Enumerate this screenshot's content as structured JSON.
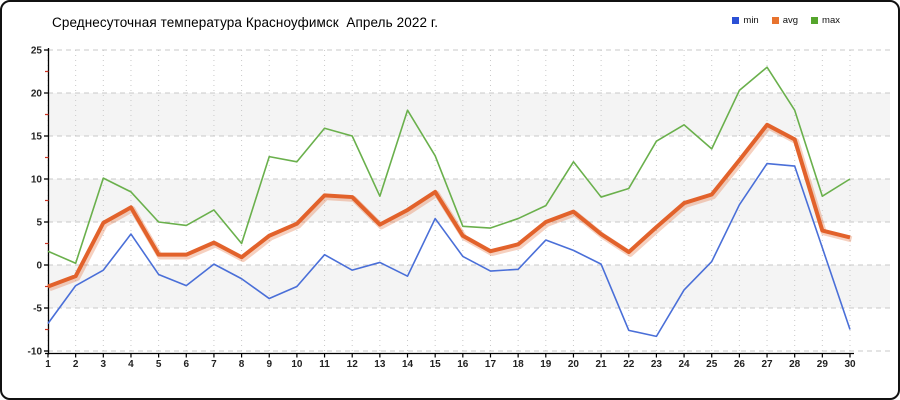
{
  "chart_data": {
    "type": "line",
    "title": "Среднесуточная температура Красноуфимск  Апрель 2022 г.",
    "x": [
      1,
      2,
      3,
      4,
      5,
      6,
      7,
      8,
      9,
      10,
      11,
      12,
      13,
      14,
      15,
      16,
      17,
      18,
      19,
      20,
      21,
      22,
      23,
      24,
      25,
      26,
      27,
      28,
      29,
      30
    ],
    "series": [
      {
        "name": "min",
        "color": "#4a6fd8",
        "swatch_color": "#2b50d5",
        "line_width": 1.6,
        "values": [
          -6.8,
          -2.4,
          -0.6,
          3.6,
          -1.1,
          -2.4,
          0.1,
          -1.6,
          -3.9,
          -2.5,
          1.2,
          -0.6,
          0.3,
          -1.3,
          5.4,
          1.0,
          -0.7,
          -0.5,
          2.9,
          1.7,
          0.1,
          -7.6,
          -8.3,
          -2.9,
          0.4,
          7.0,
          11.8,
          11.5,
          2.0,
          -7.5
        ]
      },
      {
        "name": "avg",
        "color": "#e2622b",
        "swatch_color": "#e8732e",
        "line_width": 4,
        "values": [
          -2.5,
          -1.3,
          4.9,
          6.7,
          1.2,
          1.2,
          2.6,
          0.9,
          3.4,
          4.8,
          8.1,
          7.9,
          4.7,
          6.4,
          8.5,
          3.4,
          1.6,
          2.4,
          5.0,
          6.2,
          3.6,
          1.5,
          4.4,
          7.2,
          8.2,
          12.2,
          16.3,
          14.6,
          4.0,
          3.2
        ]
      },
      {
        "name": "max",
        "color": "#6ab04c",
        "swatch_color": "#55a52c",
        "line_width": 1.6,
        "values": [
          1.6,
          0.2,
          10.1,
          8.5,
          5.0,
          4.6,
          6.4,
          2.5,
          12.6,
          12.0,
          15.9,
          15.0,
          8.0,
          18.0,
          12.7,
          4.5,
          4.3,
          5.4,
          6.9,
          12.0,
          7.9,
          8.9,
          14.4,
          16.3,
          13.5,
          20.3,
          23.0,
          18.0,
          8.0,
          10.0
        ]
      }
    ],
    "ylim": [
      -10,
      25
    ],
    "yticks": [
      25,
      20,
      15,
      10,
      5,
      0,
      -5,
      -10
    ],
    "y_minor_ticks": [
      22.5,
      17.5,
      12.5,
      7.5,
      2.5,
      -2.5,
      -7.5
    ],
    "xticks": [
      1,
      2,
      3,
      4,
      5,
      6,
      7,
      8,
      9,
      10,
      11,
      12,
      13,
      14,
      15,
      16,
      17,
      18,
      19,
      20,
      21,
      22,
      23,
      24,
      25,
      26,
      27,
      28,
      29,
      30
    ],
    "grid": "dashed",
    "grid_color": "#c9c9c9",
    "band_pairs": [
      [
        20,
        15
      ],
      [
        10,
        5
      ],
      [
        0,
        -5
      ]
    ],
    "band_color": "#f4f4f4",
    "axis_color": "#000000",
    "tick_label_color": "#222222",
    "minor_tick_color": "#cc3322",
    "legend_position": "top-right"
  }
}
